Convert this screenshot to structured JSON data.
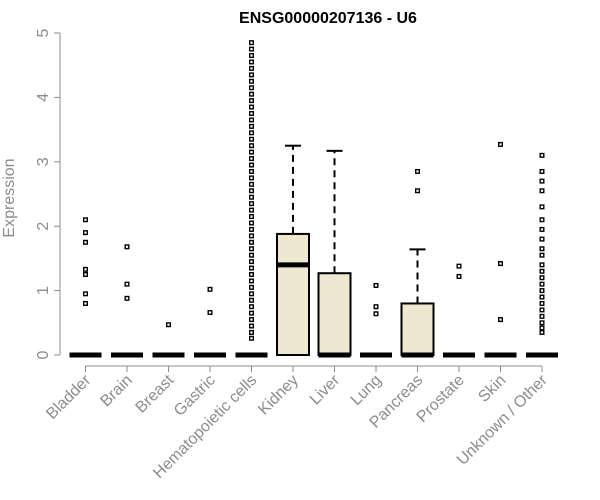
{
  "chart_data": {
    "type": "boxplot",
    "title": "ENSG00000207136 - U6",
    "ylabel": "Expression",
    "ylim": [
      0,
      5
    ],
    "yticks": [
      0,
      1,
      2,
      3,
      4,
      5
    ],
    "categories": [
      "Bladder",
      "Brain",
      "Breast",
      "Gastric",
      "Hematopoietic cells",
      "Kidney",
      "Liver",
      "Lung",
      "Pancreas",
      "Prostate",
      "Skin",
      "Unknown / Other"
    ],
    "box_fill": "#efe8d0",
    "axis_color": "#8c8c8c",
    "boxes": [
      {
        "category": "Bladder",
        "q1": 0,
        "median": 0,
        "q3": 0,
        "whisker_low": 0,
        "whisker_high": 0,
        "outliers": [
          0.8,
          0.95,
          1.25,
          1.33,
          1.75,
          1.9,
          2.1
        ]
      },
      {
        "category": "Brain",
        "q1": 0,
        "median": 0,
        "q3": 0,
        "whisker_low": 0,
        "whisker_high": 0,
        "outliers": [
          0.88,
          1.1,
          1.68
        ]
      },
      {
        "category": "Breast",
        "q1": 0,
        "median": 0,
        "q3": 0,
        "whisker_low": 0,
        "whisker_high": 0,
        "outliers": [
          0.47
        ]
      },
      {
        "category": "Gastric",
        "q1": 0,
        "median": 0,
        "q3": 0,
        "whisker_low": 0,
        "whisker_high": 0,
        "outliers": [
          0.66,
          1.02
        ]
      },
      {
        "category": "Hematopoietic cells",
        "q1": 0,
        "median": 0,
        "q3": 0,
        "whisker_low": 0,
        "whisker_high": 0,
        "outliers": [
          0.26,
          0.35,
          0.45,
          0.55,
          0.65,
          0.75,
          0.85,
          0.95,
          1.05,
          1.15,
          1.25,
          1.35,
          1.45,
          1.55,
          1.65,
          1.75,
          1.85,
          1.95,
          2.05,
          2.15,
          2.25,
          2.35,
          2.45,
          2.55,
          2.65,
          2.75,
          2.85,
          2.95,
          3.05,
          3.15,
          3.25,
          3.35,
          3.45,
          3.55,
          3.65,
          3.75,
          3.85,
          3.95,
          4.05,
          4.15,
          4.25,
          4.35,
          4.45,
          4.55,
          4.65,
          4.75,
          4.85
        ]
      },
      {
        "category": "Kidney",
        "q1": 0,
        "median": 1.4,
        "q3": 1.88,
        "whisker_low": 0,
        "whisker_high": 3.25,
        "outliers": []
      },
      {
        "category": "Liver",
        "q1": 0,
        "median": 0,
        "q3": 1.27,
        "whisker_low": 0,
        "whisker_high": 3.17,
        "outliers": []
      },
      {
        "category": "Lung",
        "q1": 0,
        "median": 0,
        "q3": 0,
        "whisker_low": 0,
        "whisker_high": 0,
        "outliers": [
          0.64,
          0.75,
          1.08
        ]
      },
      {
        "category": "Pancreas",
        "q1": 0,
        "median": 0,
        "q3": 0.8,
        "whisker_low": 0,
        "whisker_high": 1.64,
        "outliers": [
          2.55,
          2.85
        ]
      },
      {
        "category": "Prostate",
        "q1": 0,
        "median": 0,
        "q3": 0,
        "whisker_low": 0,
        "whisker_high": 0,
        "outliers": [
          1.22,
          1.38
        ]
      },
      {
        "category": "Skin",
        "q1": 0,
        "median": 0,
        "q3": 0,
        "whisker_low": 0,
        "whisker_high": 0,
        "outliers": [
          0.55,
          1.42,
          3.27
        ]
      },
      {
        "category": "Unknown / Other",
        "q1": 0,
        "median": 0,
        "q3": 0,
        "whisker_low": 0,
        "whisker_high": 0,
        "outliers": [
          0.35,
          0.42,
          0.5,
          0.6,
          0.7,
          0.8,
          0.9,
          1.0,
          1.1,
          1.2,
          1.3,
          1.4,
          1.55,
          1.65,
          1.8,
          1.95,
          2.1,
          2.3,
          2.55,
          2.7,
          2.85,
          3.1
        ]
      }
    ]
  }
}
